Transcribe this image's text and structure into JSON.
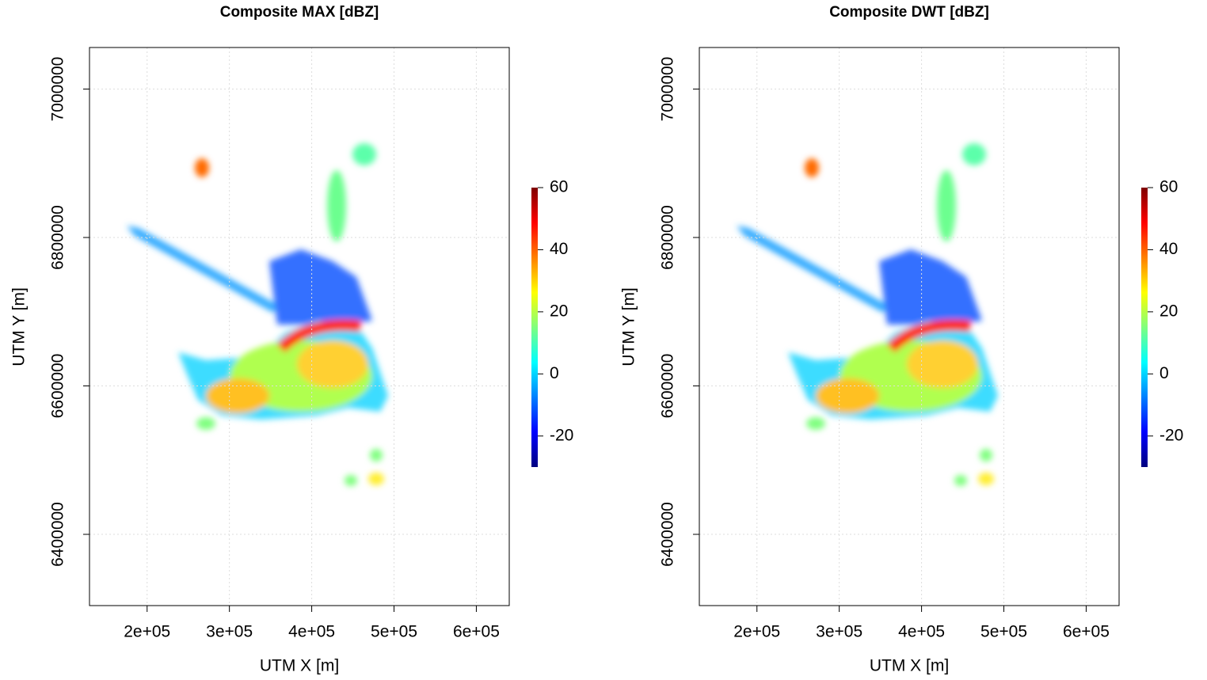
{
  "chart_data": [
    {
      "type": "image",
      "title": "Composite MAX [dBZ]",
      "x_label": "UTM X [m]",
      "y_label": "UTM Y [m]",
      "xlim": [
        130000,
        640000
      ],
      "ylim": [
        6304000,
        7056000
      ],
      "xticks": [
        {
          "value": 200000,
          "label": "2e+05"
        },
        {
          "value": 300000,
          "label": "3e+05"
        },
        {
          "value": 400000,
          "label": "4e+05"
        },
        {
          "value": 500000,
          "label": "5e+05"
        },
        {
          "value": 600000,
          "label": "6e+05"
        }
      ],
      "yticks": [
        6400000,
        6600000,
        6800000,
        7000000
      ],
      "grid": true,
      "colorbar": {
        "lim": [
          -30,
          60
        ],
        "ticks": [
          -20,
          0,
          20,
          40,
          60
        ],
        "colors": [
          "#00007f",
          "#0000ff",
          "#007fff",
          "#00ffff",
          "#7fff7f",
          "#ffff00",
          "#ff7f00",
          "#ff0000",
          "#7f0000"
        ]
      }
    },
    {
      "type": "image",
      "title": "Composite DWT [dBZ]",
      "x_label": "UTM X [m]",
      "y_label": "UTM Y [m]",
      "xlim": [
        130000,
        640000
      ],
      "ylim": [
        6304000,
        7056000
      ],
      "xticks": [
        {
          "value": 200000,
          "label": "2e+05"
        },
        {
          "value": 300000,
          "label": "3e+05"
        },
        {
          "value": 400000,
          "label": "4e+05"
        },
        {
          "value": 500000,
          "label": "5e+05"
        },
        {
          "value": 600000,
          "label": "6e+05"
        }
      ],
      "yticks": [
        6400000,
        6600000,
        6800000,
        7000000
      ],
      "grid": true,
      "colorbar": {
        "lim": [
          -30,
          60
        ],
        "ticks": [
          -20,
          0,
          20,
          40,
          60
        ],
        "colors": [
          "#00007f",
          "#0000ff",
          "#007fff",
          "#00ffff",
          "#7fff7f",
          "#ffff00",
          "#ff7f00",
          "#ff0000",
          "#7f0000"
        ]
      }
    }
  ]
}
